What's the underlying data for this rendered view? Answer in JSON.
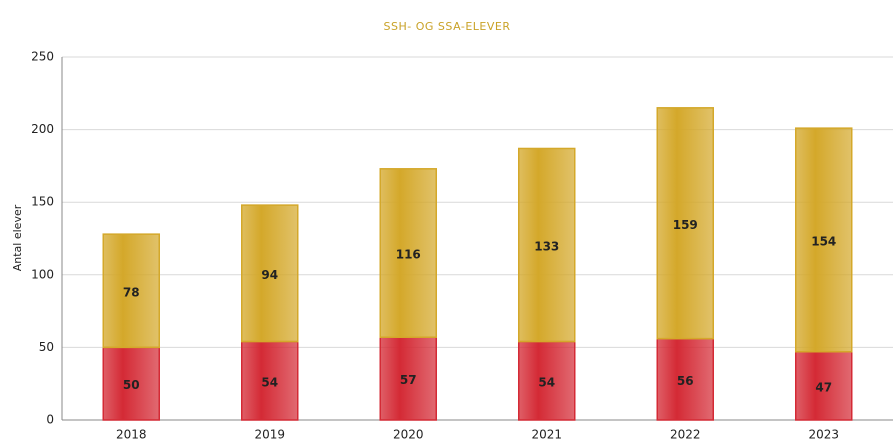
{
  "chart_data": {
    "type": "stacked_bar",
    "title": "SSH- OG SSA-ELEVER",
    "y_label": "Antal elever",
    "categories": [
      "2018",
      "2019",
      "2020",
      "2021",
      "2022",
      "2023"
    ],
    "series": [
      {
        "color": "#d42a35",
        "values": [
          50,
          54,
          57,
          54,
          56,
          47
        ]
      },
      {
        "color": "#d4a82a",
        "values": [
          78,
          94,
          116,
          133,
          159,
          154
        ]
      }
    ],
    "ylim": [
      0,
      250
    ],
    "yticks": [
      0,
      50,
      100,
      150,
      200,
      250
    ],
    "grid": true
  }
}
